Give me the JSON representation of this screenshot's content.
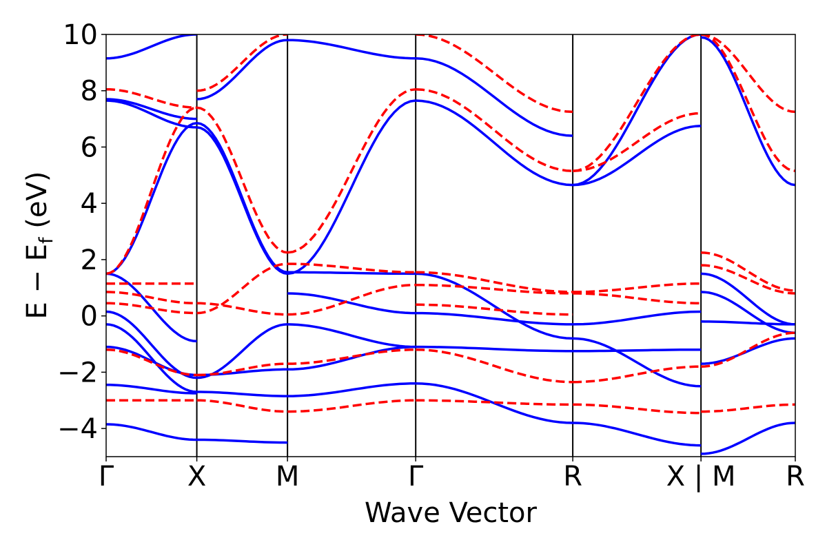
{
  "chart_data": {
    "type": "line",
    "xlabel": "Wave Vector",
    "ylabel": {
      "main": "E − E",
      "subscript": "f",
      "unit": " (eV)"
    },
    "ylim": [
      -5,
      10
    ],
    "xlim": [
      0,
      7.6
    ],
    "yticks": [
      -4,
      -2,
      0,
      2,
      4,
      6,
      8,
      10
    ],
    "ytick_labels": [
      "−4",
      "−2",
      "0",
      "2",
      "4",
      "6",
      "8",
      "10"
    ],
    "kpoints": [
      {
        "label": "Γ",
        "x": 0
      },
      {
        "label": "X",
        "x": 1.0
      },
      {
        "label": "M",
        "x": 2.0
      },
      {
        "label": "Γ",
        "x": 3.414
      },
      {
        "label": "R",
        "x": 5.146
      },
      {
        "label": "X | M",
        "x": 6.56
      },
      {
        "label": "R",
        "x": 7.6
      }
    ],
    "grid": false,
    "legend": "none",
    "colors": {
      "series_a": "#0000ff",
      "series_b": "#ff0000"
    },
    "series": [
      {
        "style": "solid",
        "color": "#0000ff",
        "segments": [
          {
            "x": [
              0,
              1.0
            ],
            "y": [
              -3.85,
              -4.4
            ]
          },
          {
            "x": [
              0,
              1.0
            ],
            "y": [
              -2.45,
              -2.75
            ]
          },
          {
            "x": [
              0,
              1.0
            ],
            "y": [
              -1.1,
              -2.1
            ]
          },
          {
            "x": [
              0,
              1.0
            ],
            "y": [
              -0.3,
              -2.7
            ]
          },
          {
            "x": [
              0,
              1.0
            ],
            "y": [
              0.15,
              -2.2
            ]
          },
          {
            "x": [
              0,
              1.0
            ],
            "y": [
              1.5,
              -0.9
            ]
          },
          {
            "x": [
              0,
              1.0
            ],
            "y": [
              1.5,
              6.85
            ]
          },
          {
            "x": [
              0,
              1.0
            ],
            "y": [
              7.65,
              6.7
            ]
          },
          {
            "x": [
              0,
              1.0
            ],
            "y": [
              7.7,
              7.0
            ]
          },
          {
            "x": [
              0,
              1.0
            ],
            "y": [
              9.15,
              10.0
            ]
          },
          {
            "x": [
              1.0,
              2.0
            ],
            "y": [
              -2.1,
              -1.9
            ]
          },
          {
            "x": [
              1.0,
              2.0
            ],
            "y": [
              -2.7,
              -2.85
            ]
          },
          {
            "x": [
              1.0,
              2.0
            ],
            "y": [
              -4.4,
              -4.5
            ]
          },
          {
            "x": [
              1.0,
              2.0
            ],
            "y": [
              6.85,
              1.55
            ]
          },
          {
            "x": [
              1.0,
              2.0
            ],
            "y": [
              6.7,
              1.5
            ]
          },
          {
            "x": [
              1.0,
              2.0
            ],
            "y": [
              7.7,
              9.8
            ]
          },
          {
            "x": [
              1.0,
              2.0
            ],
            "y": [
              -2.2,
              -0.3
            ]
          },
          {
            "x": [
              2.0,
              3.414
            ],
            "y": [
              1.55,
              1.5
            ]
          },
          {
            "x": [
              2.0,
              3.414
            ],
            "y": [
              1.5,
              7.65
            ]
          },
          {
            "x": [
              2.0,
              3.414
            ],
            "y": [
              0.8,
              0.1
            ]
          },
          {
            "x": [
              2.0,
              3.414
            ],
            "y": [
              -0.3,
              -1.1
            ]
          },
          {
            "x": [
              2.0,
              3.414
            ],
            "y": [
              -1.9,
              -1.1
            ]
          },
          {
            "x": [
              2.0,
              3.414
            ],
            "y": [
              -2.85,
              -2.4
            ]
          },
          {
            "x": [
              2.0,
              3.414
            ],
            "y": [
              9.8,
              9.15
            ]
          },
          {
            "x": [
              3.414,
              5.146
            ],
            "y": [
              1.5,
              -0.8
            ]
          },
          {
            "x": [
              3.414,
              5.146
            ],
            "y": [
              0.1,
              -0.3
            ]
          },
          {
            "x": [
              3.414,
              5.146
            ],
            "y": [
              -1.1,
              -1.25
            ]
          },
          {
            "x": [
              3.414,
              5.146
            ],
            "y": [
              -2.4,
              -3.8
            ]
          },
          {
            "x": [
              3.414,
              5.146
            ],
            "y": [
              7.65,
              4.65
            ]
          },
          {
            "x": [
              3.414,
              5.146
            ],
            "y": [
              9.15,
              6.4
            ]
          },
          {
            "x": [
              5.146,
              6.56
            ],
            "y": [
              4.65,
              6.75
            ]
          },
          {
            "x": [
              5.146,
              6.56
            ],
            "y": [
              4.65,
              10.0
            ]
          },
          {
            "x": [
              5.146,
              6.56
            ],
            "y": [
              -0.3,
              0.15
            ]
          },
          {
            "x": [
              5.146,
              6.56
            ],
            "y": [
              -1.25,
              -1.2
            ]
          },
          {
            "x": [
              5.146,
              6.56
            ],
            "y": [
              -0.8,
              -2.5
            ]
          },
          {
            "x": [
              5.146,
              6.56
            ],
            "y": [
              -3.8,
              -4.6
            ]
          },
          {
            "x": [
              6.56,
              7.6
            ],
            "y": [
              9.9,
              4.65
            ]
          },
          {
            "x": [
              6.56,
              7.6
            ],
            "y": [
              1.5,
              -0.3
            ]
          },
          {
            "x": [
              6.56,
              7.6
            ],
            "y": [
              0.85,
              -0.6
            ]
          },
          {
            "x": [
              6.56,
              7.6
            ],
            "y": [
              -0.2,
              -0.3
            ]
          },
          {
            "x": [
              6.56,
              7.6
            ],
            "y": [
              -1.7,
              -0.8
            ]
          },
          {
            "x": [
              6.56,
              7.6
            ],
            "y": [
              -4.9,
              -3.8
            ]
          }
        ]
      },
      {
        "style": "dashed",
        "color": "#ff0000",
        "segments": [
          {
            "x": [
              0,
              1.0
            ],
            "y": [
              1.15,
              1.15
            ]
          },
          {
            "x": [
              0,
              1.0
            ],
            "y": [
              0.85,
              0.45
            ]
          },
          {
            "x": [
              0,
              1.0
            ],
            "y": [
              0.45,
              0.1
            ]
          },
          {
            "x": [
              0,
              1.0
            ],
            "y": [
              -1.2,
              -2.1
            ]
          },
          {
            "x": [
              0,
              1.0
            ],
            "y": [
              -3.0,
              -3.0
            ]
          },
          {
            "x": [
              0,
              1.0
            ],
            "y": [
              1.5,
              7.4
            ]
          },
          {
            "x": [
              0,
              1.0
            ],
            "y": [
              8.05,
              7.4
            ]
          },
          {
            "x": [
              1.0,
              2.0
            ],
            "y": [
              7.4,
              2.25
            ]
          },
          {
            "x": [
              1.0,
              2.0
            ],
            "y": [
              8.0,
              10.0
            ]
          },
          {
            "x": [
              1.0,
              2.0
            ],
            "y": [
              0.45,
              0.05
            ]
          },
          {
            "x": [
              1.0,
              2.0
            ],
            "y": [
              0.1,
              1.85
            ]
          },
          {
            "x": [
              1.0,
              2.0
            ],
            "y": [
              -2.1,
              -1.7
            ]
          },
          {
            "x": [
              1.0,
              2.0
            ],
            "y": [
              -3.0,
              -3.4
            ]
          },
          {
            "x": [
              2.0,
              3.414
            ],
            "y": [
              1.85,
              1.55
            ]
          },
          {
            "x": [
              2.0,
              3.414
            ],
            "y": [
              2.25,
              8.05
            ]
          },
          {
            "x": [
              2.0,
              3.414
            ],
            "y": [
              0.05,
              1.1
            ]
          },
          {
            "x": [
              2.0,
              3.414
            ],
            "y": [
              -1.7,
              -1.2
            ]
          },
          {
            "x": [
              2.0,
              3.414
            ],
            "y": [
              -3.4,
              -3.0
            ]
          },
          {
            "x": [
              3.414,
              5.146
            ],
            "y": [
              1.55,
              0.85
            ]
          },
          {
            "x": [
              3.414,
              5.146
            ],
            "y": [
              1.1,
              0.8
            ]
          },
          {
            "x": [
              3.414,
              5.146
            ],
            "y": [
              0.4,
              0.05
            ]
          },
          {
            "x": [
              3.414,
              5.146
            ],
            "y": [
              -1.2,
              -2.35
            ]
          },
          {
            "x": [
              3.414,
              5.146
            ],
            "y": [
              -3.0,
              -3.15
            ]
          },
          {
            "x": [
              3.414,
              5.146
            ],
            "y": [
              8.05,
              5.15
            ]
          },
          {
            "x": [
              3.414,
              5.146
            ],
            "y": [
              10.0,
              7.25
            ]
          },
          {
            "x": [
              5.146,
              6.56
            ],
            "y": [
              5.15,
              7.2
            ]
          },
          {
            "x": [
              5.146,
              6.56
            ],
            "y": [
              5.15,
              10.0
            ]
          },
          {
            "x": [
              5.146,
              6.56
            ],
            "y": [
              0.85,
              1.15
            ]
          },
          {
            "x": [
              5.146,
              6.56
            ],
            "y": [
              0.8,
              0.45
            ]
          },
          {
            "x": [
              5.146,
              6.56
            ],
            "y": [
              -2.35,
              -1.8
            ]
          },
          {
            "x": [
              5.146,
              6.56
            ],
            "y": [
              -3.15,
              -3.45
            ]
          },
          {
            "x": [
              6.56,
              7.6
            ],
            "y": [
              10.0,
              5.15
            ]
          },
          {
            "x": [
              6.56,
              7.6
            ],
            "y": [
              10.0,
              7.25
            ]
          },
          {
            "x": [
              6.56,
              7.6
            ],
            "y": [
              2.25,
              0.9
            ]
          },
          {
            "x": [
              6.56,
              7.6
            ],
            "y": [
              1.8,
              0.8
            ]
          },
          {
            "x": [
              6.56,
              7.6
            ],
            "y": [
              -1.8,
              -0.6
            ]
          },
          {
            "x": [
              6.56,
              7.6
            ],
            "y": [
              -3.4,
              -3.15
            ]
          }
        ]
      }
    ]
  }
}
